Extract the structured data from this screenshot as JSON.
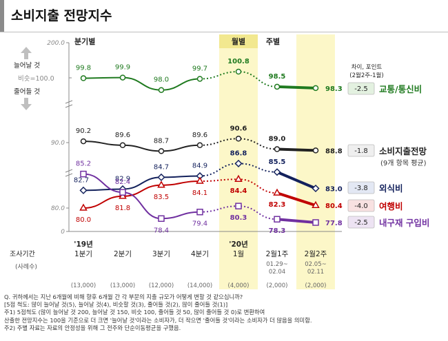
{
  "title": "소비지출 전망지수",
  "chart_data": {
    "type": "line",
    "ylim": [
      0,
      200
    ],
    "yticks": [
      "200.0",
      "90.0",
      "80.0",
      "0"
    ],
    "y_side_labels": {
      "up": "늘어날 것",
      "mid": "비슷=100.0",
      "down": "줄어들 것"
    },
    "section_labels": [
      "분기별",
      "월별",
      "주별"
    ],
    "x_header_label": "조사기간",
    "x_header_sub": "(사례수)",
    "categories": [
      {
        "label": "'19년\n1분기",
        "date": "",
        "n": "(13,000)"
      },
      {
        "label": "2분기",
        "date": "",
        "n": "(13,000)"
      },
      {
        "label": "3분기",
        "date": "",
        "n": "(12,000)"
      },
      {
        "label": "4분기",
        "date": "",
        "n": "(14,000)"
      },
      {
        "label": "'20년\n1월",
        "date": "",
        "n": "(4,000)"
      },
      {
        "label": "2월1주",
        "date": "01.29~\n02.04",
        "n": "(2,000)"
      },
      {
        "label": "2월2주",
        "date": "02.05~\n02.11",
        "n": "(2,000)"
      }
    ],
    "diff_header": "차이, 포인트\n(2월2주-1월)",
    "series": [
      {
        "name": "교통/통신비",
        "sub": "",
        "color": "#1f7a1f",
        "marker": "circle",
        "values": [
          99.8,
          99.9,
          98.0,
          99.7,
          100.8,
          98.5,
          98.3
        ],
        "labels": [
          "99.8",
          "99.9",
          "98.0",
          "99.7",
          "100.8",
          "98.5",
          "98.3"
        ],
        "diff": "-2.5",
        "diff_bg": "#e3f1e0"
      },
      {
        "name": "소비지출전망",
        "sub": "(9개 항목 평균)",
        "color": "#222222",
        "marker": "circle",
        "values": [
          90.2,
          89.6,
          88.7,
          89.6,
          90.6,
          89.0,
          88.8
        ],
        "labels": [
          "90.2",
          "89.6",
          "88.7",
          "89.6",
          "90.6",
          "89.0",
          "88.8"
        ],
        "diff": "-1.8",
        "diff_bg": "#efefef"
      },
      {
        "name": "외식비",
        "sub": "",
        "color": "#13215c",
        "marker": "diamond",
        "values": [
          82.7,
          82.9,
          84.7,
          84.9,
          86.8,
          85.5,
          83.0
        ],
        "labels": [
          "82.7",
          "82.9",
          "84.7",
          "84.9",
          "86.8",
          "85.5",
          "83.0"
        ],
        "diff": "-3.8",
        "diff_bg": "#e3e8f4"
      },
      {
        "name": "여행비",
        "sub": "",
        "color": "#c00000",
        "marker": "triangle",
        "values": [
          80.0,
          81.8,
          83.5,
          84.1,
          84.4,
          82.3,
          80.4
        ],
        "labels": [
          "80.0",
          "81.8",
          "83.5",
          "84.1",
          "84.4",
          "82.3",
          "80.4"
        ],
        "diff": "-4.0",
        "diff_bg": "#f8e1e1"
      },
      {
        "name": "내구재 구입비",
        "sub": "",
        "color": "#7030a0",
        "marker": "square",
        "values": [
          85.2,
          82.4,
          78.4,
          79.4,
          80.3,
          78.3,
          77.8
        ],
        "labels": [
          "85.2",
          "82.4",
          "78.4",
          "79.4",
          "80.3",
          "78.3",
          "77.8"
        ],
        "diff": "-2.5",
        "diff_bg": "#ede3f3"
      }
    ]
  },
  "notes": [
    "Q. 귀하께서는 지난 6개월에 비해 향후 6개월 간 각 부문의 지출 규모가 어떻게 변할 것 같으십니까?",
    "    [5점 척도: 많이 늘어날 것(5), 늘어날 것(4), 비슷할 것(3), 줄어들 것(2), 많이 줄어들 것(1)]",
    "주1) 5점척도 (많이 늘어날 것 200, 늘어날 것 150, 비슷 100, 줄어들 것 50, 많이 줄어들 것 0)로 변환하여",
    "       산출한 전망지수는 100을 기준으로 더 크면 '늘어날 것'이라는 소비자가, 더 작으면 '줄어들 것'이라는 소비자가 더 많음을 의미함.",
    "주2) 주별 자료는 자료의 안정성을 위해 그 전주와 단순이동평균을 구했음."
  ]
}
